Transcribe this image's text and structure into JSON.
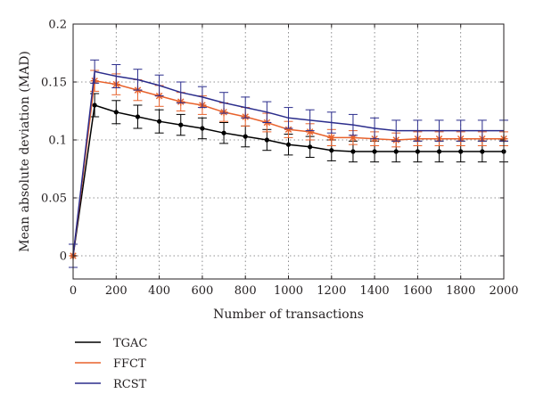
{
  "chart_data": {
    "type": "line",
    "xlabel": "Number of transactions",
    "ylabel": "Mean absolute deviation (MAD)",
    "xlim": [
      0,
      2000
    ],
    "ylim": [
      -0.02,
      0.2
    ],
    "xticks": [
      0,
      200,
      400,
      600,
      800,
      1000,
      1200,
      1400,
      1600,
      1800,
      2000
    ],
    "xtick_labels": [
      "0",
      "200",
      "400",
      "600",
      "800",
      "1000",
      "1200",
      "1400",
      "1600",
      "1800",
      "2000"
    ],
    "yticks": [
      0,
      0.05,
      0.1,
      0.15,
      0.2
    ],
    "ytick_labels": [
      "0",
      "0.05",
      "0.1",
      "0.15",
      "0.2"
    ],
    "grid": true,
    "legend_position": "below-left",
    "x": [
      0,
      100,
      200,
      300,
      400,
      500,
      600,
      700,
      800,
      900,
      1000,
      1100,
      1200,
      1300,
      1400,
      1500,
      1600,
      1700,
      1800,
      1900,
      2000
    ],
    "series": [
      {
        "name": "TGAC",
        "color": "#000000",
        "marker": "dot",
        "values": [
          0,
          0.13,
          0.124,
          0.12,
          0.116,
          0.113,
          0.11,
          0.106,
          0.103,
          0.1,
          0.096,
          0.094,
          0.091,
          0.09,
          0.09,
          0.09,
          0.09,
          0.09,
          0.09,
          0.09,
          0.09
        ],
        "error": [
          0.01,
          0.01,
          0.01,
          0.01,
          0.01,
          0.009,
          0.009,
          0.009,
          0.009,
          0.009,
          0.009,
          0.009,
          0.009,
          0.009,
          0.009,
          0.009,
          0.009,
          0.009,
          0.009,
          0.009,
          0.009
        ]
      },
      {
        "name": "FFCT",
        "color": "#e8622c",
        "marker": "star",
        "values": [
          0,
          0.151,
          0.148,
          0.143,
          0.138,
          0.133,
          0.13,
          0.124,
          0.12,
          0.115,
          0.109,
          0.107,
          0.102,
          0.102,
          0.101,
          0.1,
          0.101,
          0.101,
          0.101,
          0.101,
          0.101
        ],
        "error": [
          0.01,
          0.009,
          0.009,
          0.009,
          0.009,
          0.008,
          0.008,
          0.008,
          0.008,
          0.008,
          0.007,
          0.007,
          0.007,
          0.006,
          0.006,
          0.006,
          0.006,
          0.006,
          0.006,
          0.006,
          0.006
        ]
      },
      {
        "name": "RCST",
        "color": "#2b2d8c",
        "marker": "none",
        "values": [
          0,
          0.159,
          0.155,
          0.152,
          0.147,
          0.141,
          0.137,
          0.132,
          0.128,
          0.124,
          0.119,
          0.117,
          0.115,
          0.113,
          0.11,
          0.108,
          0.108,
          0.108,
          0.108,
          0.108,
          0.108
        ],
        "error": [
          0.01,
          0.01,
          0.01,
          0.009,
          0.009,
          0.009,
          0.009,
          0.009,
          0.009,
          0.009,
          0.009,
          0.009,
          0.009,
          0.009,
          0.009,
          0.009,
          0.009,
          0.009,
          0.009,
          0.009,
          0.009
        ]
      }
    ]
  }
}
